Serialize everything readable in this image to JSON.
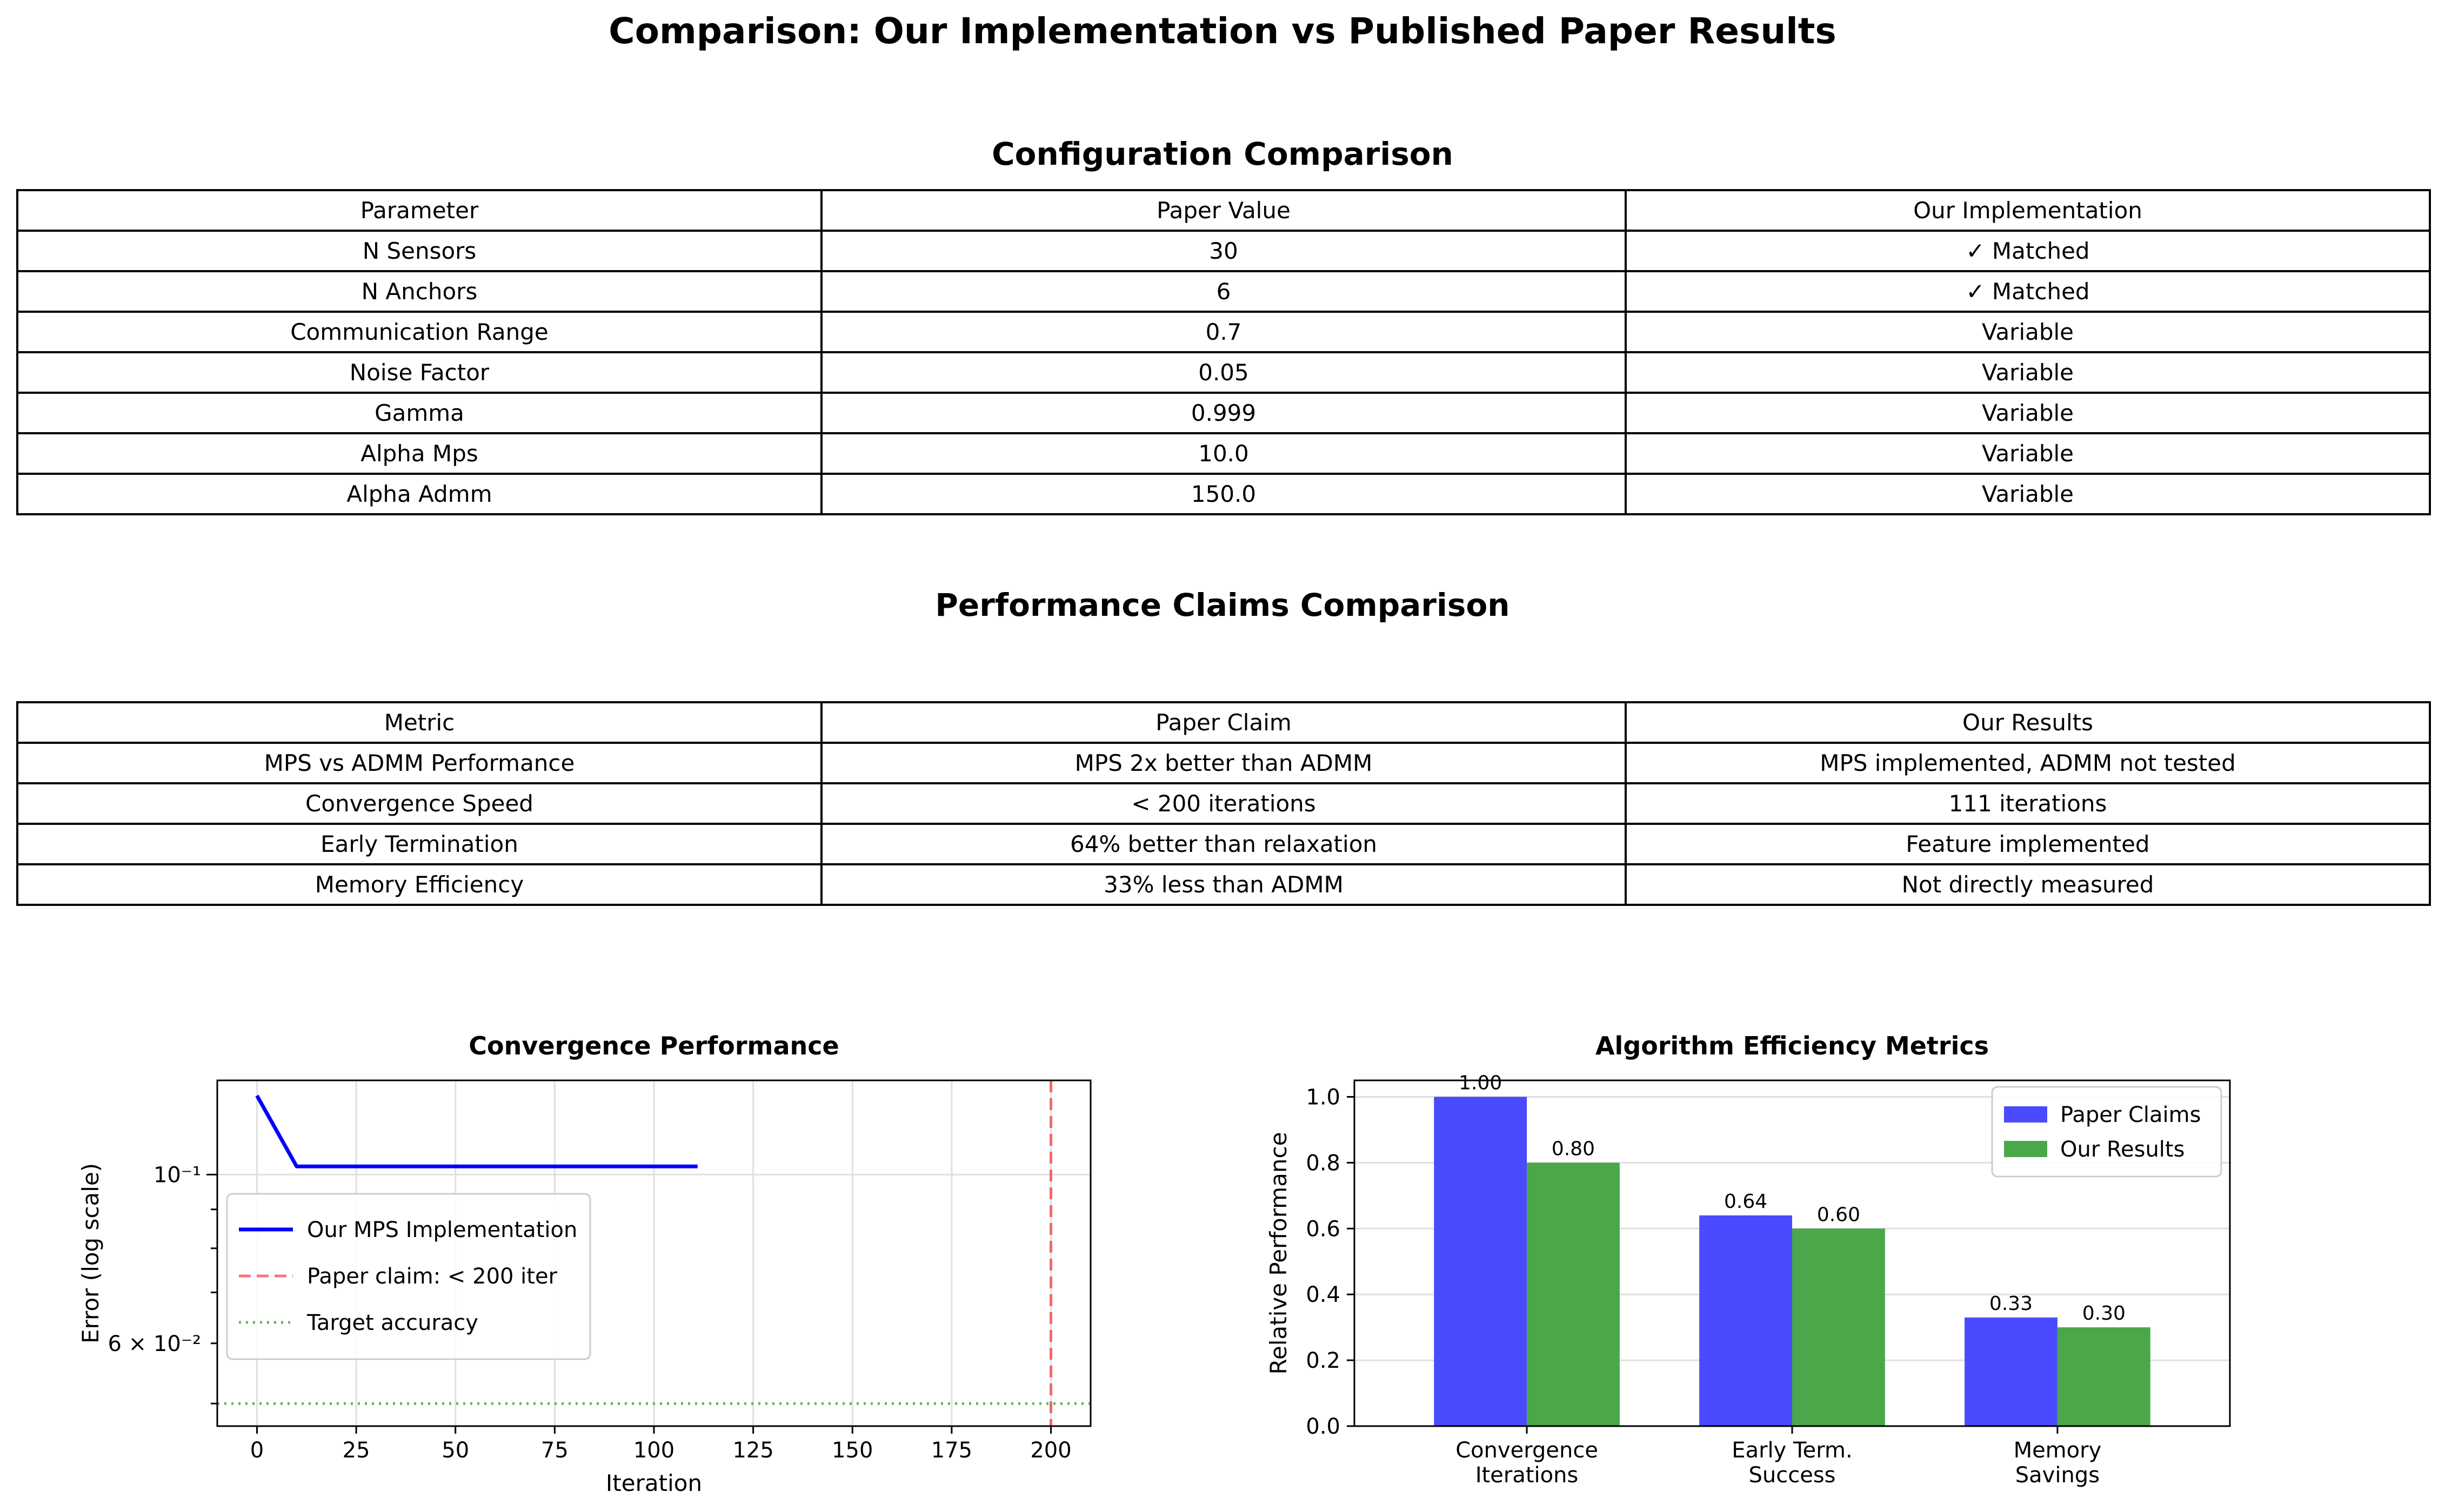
{
  "figure": {
    "title": "Comparison: Our Implementation vs Published Paper Results"
  },
  "config_table": {
    "title": "Configuration Comparison",
    "headers": [
      "Parameter",
      "Paper Value",
      "Our Implementation"
    ],
    "rows": [
      [
        "N Sensors",
        "30",
        "✓ Matched"
      ],
      [
        "N Anchors",
        "6",
        "✓ Matched"
      ],
      [
        "Communication Range",
        "0.7",
        "Variable"
      ],
      [
        "Noise Factor",
        "0.05",
        "Variable"
      ],
      [
        "Gamma",
        "0.999",
        "Variable"
      ],
      [
        "Alpha Mps",
        "10.0",
        "Variable"
      ],
      [
        "Alpha Admm",
        "150.0",
        "Variable"
      ]
    ]
  },
  "perf_table": {
    "title": "Performance Claims Comparison",
    "headers": [
      "Metric",
      "Paper Claim",
      "Our Results"
    ],
    "rows": [
      [
        "MPS vs ADMM Performance",
        "MPS 2x better than ADMM",
        "MPS implemented, ADMM not tested"
      ],
      [
        "Convergence Speed",
        "< 200 iterations",
        "111 iterations"
      ],
      [
        "Early Termination",
        "64% better than relaxation",
        "Feature implemented"
      ],
      [
        "Memory Efficiency",
        "33% less than ADMM",
        "Not directly measured"
      ]
    ]
  },
  "chart_data": [
    {
      "type": "line",
      "title": "Convergence Performance",
      "xlabel": "Iteration",
      "ylabel": "Error (log scale)",
      "yscale": "log",
      "xlim": [
        -10,
        210
      ],
      "ylim": [
        0.0467,
        0.133
      ],
      "xticks": [
        0,
        25,
        50,
        75,
        100,
        125,
        150,
        175,
        200
      ],
      "yticks_major": [
        {
          "value": 0.1,
          "label": "10⁻¹"
        }
      ],
      "yticks_labeled_minor": [
        {
          "value": 0.06,
          "label": "6 × 10⁻²"
        }
      ],
      "grid": true,
      "legend_position": "center-left",
      "series": [
        {
          "name": "Our MPS Implementation",
          "color": "#0000ff",
          "style": "solid",
          "x": [
            0,
            10,
            111
          ],
          "y": [
            0.127,
            0.1025,
            0.1025
          ]
        }
      ],
      "vlines": [
        {
          "name": "Paper claim: < 200 iter",
          "x": 200,
          "color": "#ff0000",
          "style": "dashed"
        }
      ],
      "hlines": [
        {
          "name": "Target accuracy",
          "y": 0.05,
          "color": "#2ca02c",
          "style": "dotted"
        }
      ]
    },
    {
      "type": "bar",
      "title": "Algorithm Efficiency Metrics",
      "ylabel": "Relative Performance",
      "ylim": [
        0,
        1.05
      ],
      "yticks": [
        0.0,
        0.2,
        0.4,
        0.6,
        0.8,
        1.0
      ],
      "grid": true,
      "legend_position": "top-right",
      "categories": [
        [
          "Convergence",
          "Iterations"
        ],
        [
          "Early Term.",
          "Success"
        ],
        [
          "Memory",
          "Savings"
        ]
      ],
      "series": [
        {
          "name": "Paper Claims",
          "color": "#4a4aff",
          "values": [
            1.0,
            0.64,
            0.33
          ],
          "labels": [
            "1.00",
            "0.64",
            "0.33"
          ]
        },
        {
          "name": "Our Results",
          "color": "#4aa74a",
          "values": [
            0.8,
            0.6,
            0.3
          ],
          "labels": [
            "0.80",
            "0.60",
            "0.30"
          ]
        }
      ]
    }
  ]
}
